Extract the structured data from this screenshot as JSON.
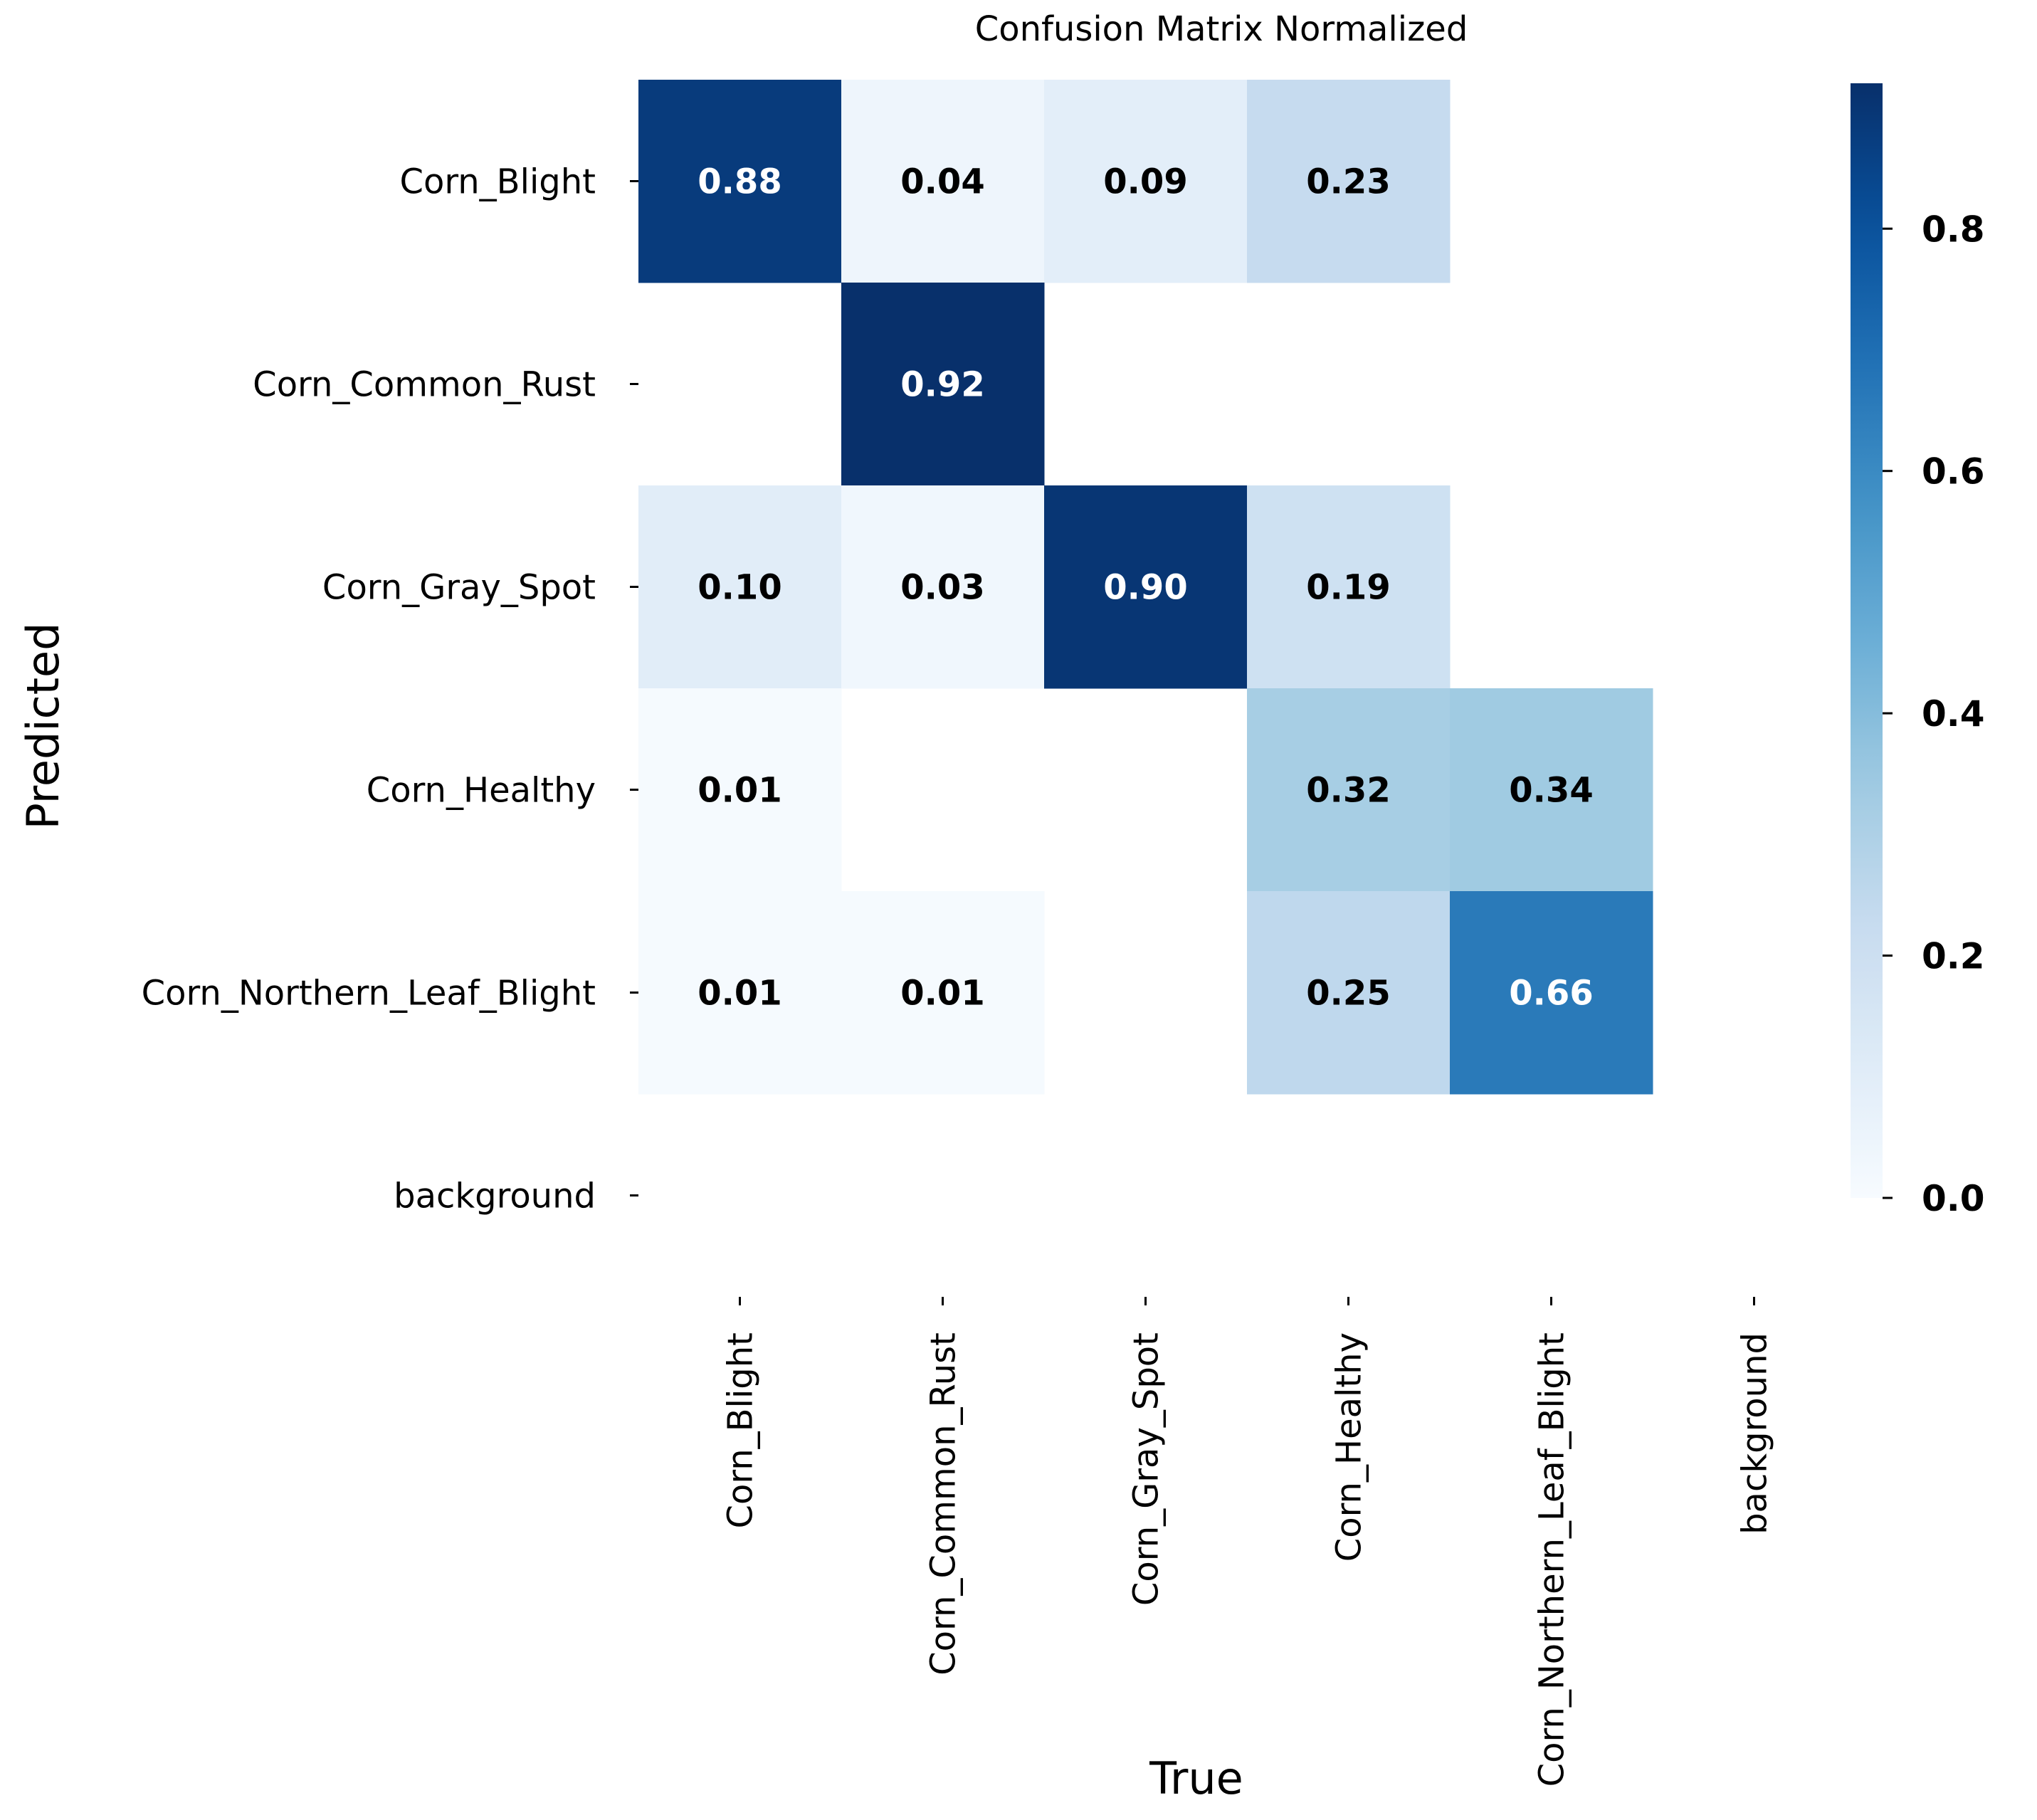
{
  "chart_data": {
    "type": "heatmap",
    "title": "Confusion Matrix Normalized",
    "xlabel": "True",
    "ylabel": "Predicted",
    "x_categories": [
      "Corn_Blight",
      "Corn_Common_Rust",
      "Corn_Gray_Spot",
      "Corn_Healthy",
      "Corn_Northern_Leaf_Blight",
      "background"
    ],
    "y_categories": [
      "Corn_Blight",
      "Corn_Common_Rust",
      "Corn_Gray_Spot",
      "Corn_Healthy",
      "Corn_Northern_Leaf_Blight",
      "background"
    ],
    "values": [
      [
        0.88,
        0.04,
        0.09,
        0.23,
        null,
        null
      ],
      [
        null,
        0.92,
        null,
        null,
        null,
        null
      ],
      [
        0.1,
        0.03,
        0.9,
        0.19,
        null,
        null
      ],
      [
        0.01,
        null,
        null,
        0.32,
        0.34,
        null
      ],
      [
        0.01,
        0.01,
        null,
        0.25,
        0.66,
        null
      ],
      [
        null,
        null,
        null,
        null,
        null,
        null
      ]
    ],
    "colormap": "Blues",
    "vmin": 0.0,
    "vmax": 0.92,
    "colorbar_ticks": [
      "0.0",
      "0.2",
      "0.4",
      "0.6",
      "0.8"
    ],
    "grid": false,
    "colorbar_position": "right"
  }
}
